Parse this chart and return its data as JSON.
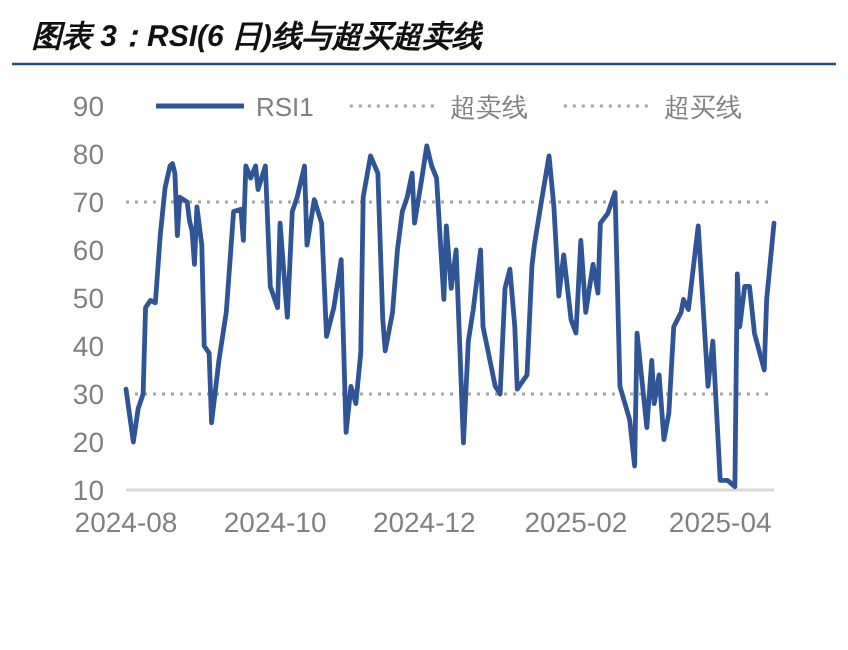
{
  "chart_data": {
    "type": "line",
    "title": "图表 3：RSI(6 日)线与超买超卖线",
    "legend": "top",
    "xlim": [
      "2024-08-01",
      "2025-04-23"
    ],
    "ylim": [
      10,
      90
    ],
    "yticks": [
      10,
      20,
      30,
      40,
      50,
      60,
      70,
      80,
      90
    ],
    "xticks": [
      {
        "value": "2024-08-01",
        "label": "2024-08"
      },
      {
        "value": "2024-10-01",
        "label": "2024-10"
      },
      {
        "value": "2024-12-01",
        "label": "2024-12"
      },
      {
        "value": "2025-02-01",
        "label": "2025-02"
      },
      {
        "value": "2025-04-01",
        "label": "2025-04"
      }
    ],
    "series": [
      {
        "name": "RSI1",
        "color": "#2f5597",
        "line_style": "solid",
        "x": [
          "2024-08-01",
          "2024-08-04",
          "2024-08-06",
          "2024-08-08",
          "2024-08-09",
          "2024-08-11",
          "2024-08-13",
          "2024-08-15",
          "2024-08-17",
          "2024-08-19",
          "2024-08-20",
          "2024-08-21",
          "2024-08-22",
          "2024-08-23",
          "2024-08-26",
          "2024-08-27",
          "2024-08-28",
          "2024-08-29",
          "2024-08-30",
          "2024-09-01",
          "2024-09-02",
          "2024-09-04",
          "2024-09-05",
          "2024-09-08",
          "2024-09-11",
          "2024-09-14",
          "2024-09-17",
          "2024-09-18",
          "2024-09-19",
          "2024-09-21",
          "2024-09-23",
          "2024-09-24",
          "2024-09-27",
          "2024-09-29",
          "2024-10-02",
          "2024-10-03",
          "2024-10-04",
          "2024-10-06",
          "2024-10-08",
          "2024-10-10",
          "2024-10-13",
          "2024-10-14",
          "2024-10-17",
          "2024-10-20",
          "2024-10-22",
          "2024-10-25",
          "2024-10-28",
          "2024-10-30",
          "2024-11-01",
          "2024-11-03",
          "2024-11-05",
          "2024-11-06",
          "2024-11-09",
          "2024-11-12",
          "2024-11-14",
          "2024-11-15",
          "2024-11-18",
          "2024-11-20",
          "2024-11-22",
          "2024-11-24",
          "2024-11-26",
          "2024-11-27",
          "2024-11-30",
          "2024-12-02",
          "2024-12-04",
          "2024-12-06",
          "2024-12-09",
          "2024-12-10",
          "2024-12-12",
          "2024-12-14",
          "2024-12-17",
          "2024-12-19",
          "2024-12-21",
          "2024-12-24",
          "2024-12-25",
          "2024-12-30",
          "2025-01-01",
          "2025-01-03",
          "2025-01-05",
          "2025-01-07",
          "2025-01-08",
          "2025-01-12",
          "2025-01-14",
          "2025-01-15",
          "2025-01-18",
          "2025-01-21",
          "2025-01-23",
          "2025-01-25",
          "2025-01-27",
          "2025-01-30",
          "2025-02-01",
          "2025-02-03",
          "2025-02-05",
          "2025-02-08",
          "2025-02-10",
          "2025-02-11",
          "2025-02-14",
          "2025-02-17",
          "2025-02-19",
          "2025-02-23",
          "2025-02-25",
          "2025-02-26",
          "2025-03-02",
          "2025-03-04",
          "2025-03-05",
          "2025-03-07",
          "2025-03-09",
          "2025-03-11",
          "2025-03-13",
          "2025-03-16",
          "2025-03-17",
          "2025-03-19",
          "2025-03-23",
          "2025-03-27",
          "2025-03-29",
          "2025-04-01",
          "2025-04-04",
          "2025-04-07",
          "2025-04-08",
          "2025-04-09",
          "2025-04-11",
          "2025-04-13",
          "2025-04-15",
          "2025-04-19",
          "2025-04-20",
          "2025-04-23"
        ],
        "values": [
          31,
          20,
          27,
          30,
          48,
          49.5,
          49,
          63,
          73,
          77.5,
          78,
          76,
          63,
          71,
          70,
          66,
          64,
          57,
          69,
          61,
          40,
          38.5,
          24,
          37,
          47,
          68,
          68.5,
          62,
          77.5,
          75,
          77.5,
          72.6,
          77.5,
          52.4,
          48,
          65.6,
          59,
          46,
          68,
          71,
          77.5,
          61,
          70.5,
          65.6,
          42,
          48,
          58,
          22,
          31.6,
          28,
          38.5,
          71,
          79.6,
          76,
          45.5,
          39,
          47,
          60,
          68,
          71,
          76,
          65.6,
          75,
          81.7,
          77.5,
          75,
          49.7,
          65,
          52,
          60,
          19.8,
          41,
          47.6,
          60,
          44,
          31.6,
          30,
          52,
          56,
          44,
          31,
          34,
          56.6,
          61,
          70.5,
          79.6,
          69,
          50.4,
          59,
          45.5,
          42.7,
          62,
          47,
          57,
          51,
          65.6,
          67.6,
          72,
          31.6,
          24.6,
          15,
          42.7,
          23,
          37,
          28,
          34,
          20.5,
          26,
          44,
          47,
          49.7,
          47.6,
          65,
          31.6,
          41,
          12,
          12,
          10.7,
          55,
          44,
          52.4,
          52.4,
          42.7,
          35,
          49.7,
          65.6
        ]
      },
      {
        "name": "超卖线",
        "color": "#a5a5a5",
        "line_style": "dotted",
        "x": [
          "2024-08-01",
          "2025-04-23"
        ],
        "values": [
          30,
          30
        ]
      },
      {
        "name": "超买线",
        "color": "#a5a5a5",
        "line_style": "dotted",
        "x": [
          "2024-08-01",
          "2025-04-23"
        ],
        "values": [
          70,
          70
        ]
      }
    ]
  }
}
